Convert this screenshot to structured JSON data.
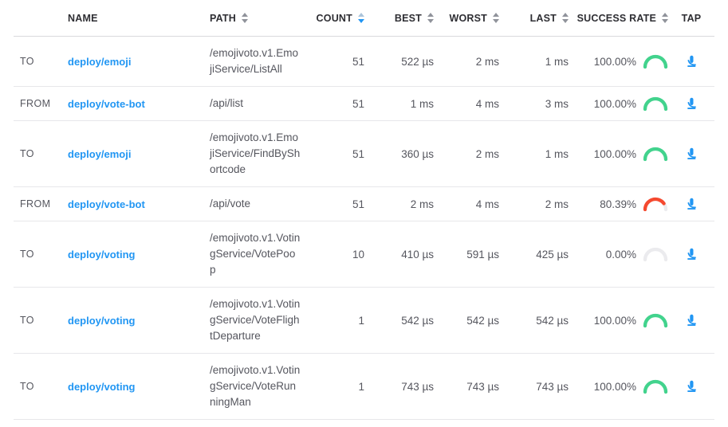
{
  "colors": {
    "link_blue": "#2196f3",
    "success_green": "#42d38d",
    "failure_red": "#f5492f",
    "neutral_arc": "#ebebee"
  },
  "table": {
    "columns": [
      {
        "id": "direction",
        "label": "",
        "sortable": false
      },
      {
        "id": "name",
        "label": "NAME",
        "sortable": false
      },
      {
        "id": "path",
        "label": "PATH",
        "sortable": true
      },
      {
        "id": "count",
        "label": "COUNT",
        "sortable": true,
        "sorted": "desc"
      },
      {
        "id": "best",
        "label": "BEST",
        "sortable": true
      },
      {
        "id": "worst",
        "label": "WORST",
        "sortable": true
      },
      {
        "id": "last",
        "label": "LAST",
        "sortable": true
      },
      {
        "id": "success_rate",
        "label": "SUCCESS RATE",
        "sortable": true
      },
      {
        "id": "tap",
        "label": "TAP",
        "sortable": false
      }
    ],
    "rows": [
      {
        "direction": "TO",
        "name": "deploy/emoji",
        "path": "/emojivoto.v1.EmojiService/ListAll",
        "count": "51",
        "best": "522 µs",
        "worst": "2 ms",
        "last": "1 ms",
        "success_rate": "100.00%"
      },
      {
        "direction": "FROM",
        "name": "deploy/vote-bot",
        "path": "/api/list",
        "count": "51",
        "best": "1 ms",
        "worst": "4 ms",
        "last": "3 ms",
        "success_rate": "100.00%"
      },
      {
        "direction": "TO",
        "name": "deploy/emoji",
        "path": "/emojivoto.v1.EmojiService/FindByShortcode",
        "count": "51",
        "best": "360 µs",
        "worst": "2 ms",
        "last": "1 ms",
        "success_rate": "100.00%"
      },
      {
        "direction": "FROM",
        "name": "deploy/vote-bot",
        "path": "/api/vote",
        "count": "51",
        "best": "2 ms",
        "worst": "4 ms",
        "last": "2 ms",
        "success_rate": "80.39%"
      },
      {
        "direction": "TO",
        "name": "deploy/voting",
        "path": "/emojivoto.v1.VotingService/VotePoop",
        "count": "10",
        "best": "410 µs",
        "worst": "591 µs",
        "last": "425 µs",
        "success_rate": "0.00%"
      },
      {
        "direction": "TO",
        "name": "deploy/voting",
        "path": "/emojivoto.v1.VotingService/VoteFlightDeparture",
        "count": "1",
        "best": "542 µs",
        "worst": "542 µs",
        "last": "542 µs",
        "success_rate": "100.00%"
      },
      {
        "direction": "TO",
        "name": "deploy/voting",
        "path": "/emojivoto.v1.VotingService/VoteRunningMan",
        "count": "1",
        "best": "743 µs",
        "worst": "743 µs",
        "last": "743 µs",
        "success_rate": "100.00%"
      }
    ]
  }
}
